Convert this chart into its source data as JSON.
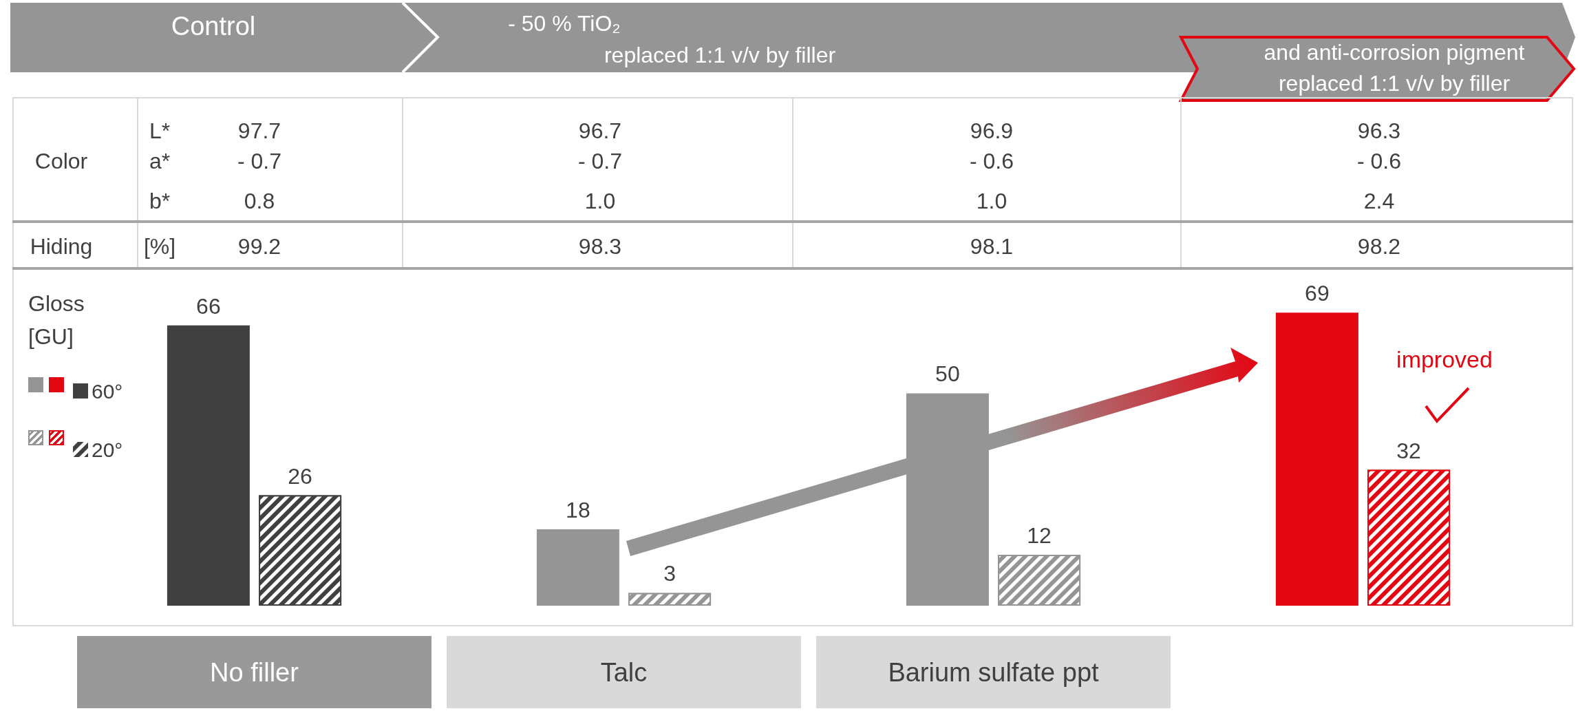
{
  "chart_data": {
    "type": "bar",
    "ylabel": "Gloss [GU]",
    "categories": [
      "No filler",
      "Talc",
      "Barium sulfate ppt",
      null
    ],
    "series": [
      {
        "name": "60°",
        "colors": [
          "#404040",
          "#959595",
          "#959595",
          "#e30613"
        ],
        "values": [
          66,
          18,
          50,
          69
        ]
      },
      {
        "name": "20°",
        "colors": [
          "#404040",
          "#959595",
          "#959595",
          "#e30613"
        ],
        "values": [
          26,
          3,
          12,
          32
        ]
      }
    ],
    "data_labels": true,
    "legend": "left",
    "annotations": [
      "Control",
      "- 50 % TiO₂",
      "replaced 1:1 v/v by filler",
      "and anti-corrosion pigment replaced 1:1 v/v by filler",
      "Color",
      "L*",
      "a*",
      "b*",
      "Hiding",
      "[%]",
      "97.7",
      "96.7",
      "96.9",
      "96.3",
      "- 0.7",
      "- 0.7",
      "- 0.6",
      "- 0.6",
      "0.8",
      "1.0",
      "1.0",
      "2.4",
      "99.2",
      "98.3",
      "98.1",
      "98.2",
      "improved"
    ]
  }
}
